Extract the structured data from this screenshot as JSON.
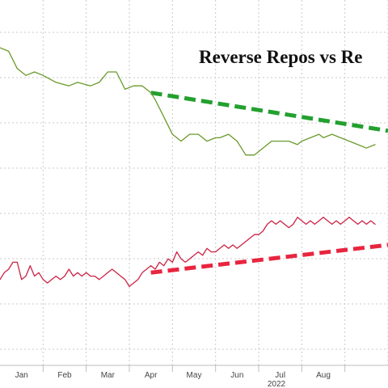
{
  "chart_data": {
    "type": "line",
    "title": "Reverse Repos vs Re",
    "x_axis": {
      "ticks": [
        "Jan",
        "Feb",
        "Mar",
        "Apr",
        "May",
        "Jun",
        "Jul",
        "Aug"
      ],
      "year_label": "2022",
      "range_months": [
        -0.5,
        8.5
      ]
    },
    "y_axis": {
      "range": [
        0,
        1
      ],
      "tick_labels": []
    },
    "grid": true,
    "series": [
      {
        "color": "#6a9a2a",
        "x": [
          -0.5,
          -0.3,
          -0.1,
          0.1,
          0.3,
          0.5,
          0.8,
          1.1,
          1.3,
          1.6,
          1.8,
          2.0,
          2.2,
          2.4,
          2.6,
          2.8,
          3.0,
          3.1,
          3.3,
          3.5,
          3.6,
          3.7,
          3.8,
          3.9,
          4.1,
          4.3,
          4.5,
          4.6,
          4.8,
          5.0,
          5.1,
          5.2,
          5.4,
          5.6,
          5.8,
          6.0,
          6.2,
          6.4,
          6.5,
          6.7,
          6.9,
          7.0,
          7.2,
          7.4,
          7.6,
          7.8,
          8.0,
          8.2
        ],
        "values": [
          0.89,
          0.88,
          0.83,
          0.81,
          0.82,
          0.81,
          0.79,
          0.78,
          0.79,
          0.78,
          0.79,
          0.82,
          0.82,
          0.77,
          0.78,
          0.78,
          0.76,
          0.74,
          0.69,
          0.64,
          0.63,
          0.62,
          0.63,
          0.64,
          0.64,
          0.62,
          0.63,
          0.63,
          0.64,
          0.62,
          0.6,
          0.58,
          0.58,
          0.6,
          0.62,
          0.62,
          0.62,
          0.61,
          0.62,
          0.63,
          0.64,
          0.63,
          0.64,
          0.63,
          0.62,
          0.61,
          0.6,
          0.61
        ]
      },
      {
        "color": "#cc2244",
        "x": [
          -0.5,
          -0.4,
          -0.3,
          -0.2,
          -0.1,
          0.0,
          0.1,
          0.2,
          0.3,
          0.4,
          0.5,
          0.6,
          0.7,
          0.8,
          0.9,
          1.0,
          1.1,
          1.2,
          1.3,
          1.4,
          1.5,
          1.6,
          1.7,
          1.8,
          1.9,
          2.0,
          2.1,
          2.2,
          2.3,
          2.4,
          2.5,
          2.6,
          2.7,
          2.8,
          2.9,
          3.0,
          3.1,
          3.2,
          3.3,
          3.4,
          3.5,
          3.6,
          3.7,
          3.8,
          3.9,
          4.0,
          4.1,
          4.2,
          4.3,
          4.4,
          4.5,
          4.6,
          4.7,
          4.8,
          4.9,
          5.0,
          5.1,
          5.2,
          5.3,
          5.4,
          5.5,
          5.6,
          5.7,
          5.8,
          5.9,
          6.0,
          6.1,
          6.2,
          6.3,
          6.4,
          6.5,
          6.6,
          6.7,
          6.8,
          6.9,
          7.0,
          7.1,
          7.2,
          7.3,
          7.4,
          7.5,
          7.6,
          7.7,
          7.8,
          7.9,
          8.0,
          8.1,
          8.2
        ],
        "values": [
          0.22,
          0.24,
          0.25,
          0.27,
          0.27,
          0.22,
          0.23,
          0.26,
          0.23,
          0.24,
          0.22,
          0.21,
          0.22,
          0.23,
          0.22,
          0.23,
          0.25,
          0.23,
          0.24,
          0.23,
          0.24,
          0.23,
          0.23,
          0.22,
          0.23,
          0.24,
          0.25,
          0.24,
          0.23,
          0.22,
          0.2,
          0.21,
          0.22,
          0.24,
          0.25,
          0.26,
          0.25,
          0.27,
          0.26,
          0.28,
          0.27,
          0.3,
          0.28,
          0.27,
          0.28,
          0.29,
          0.3,
          0.29,
          0.31,
          0.3,
          0.3,
          0.31,
          0.32,
          0.31,
          0.32,
          0.31,
          0.32,
          0.33,
          0.34,
          0.35,
          0.35,
          0.36,
          0.38,
          0.39,
          0.38,
          0.39,
          0.38,
          0.37,
          0.38,
          0.4,
          0.39,
          0.38,
          0.39,
          0.38,
          0.39,
          0.4,
          0.39,
          0.38,
          0.39,
          0.38,
          0.39,
          0.4,
          0.39,
          0.38,
          0.39,
          0.38,
          0.39,
          0.38
        ]
      }
    ],
    "trend_lines": [
      {
        "color": "#23a02f",
        "x": [
          3.0,
          8.5
        ],
        "values": [
          0.76,
          0.65
        ]
      },
      {
        "color": "#e8253f",
        "x": [
          3.0,
          8.5
        ],
        "values": [
          0.24,
          0.32
        ]
      }
    ]
  }
}
